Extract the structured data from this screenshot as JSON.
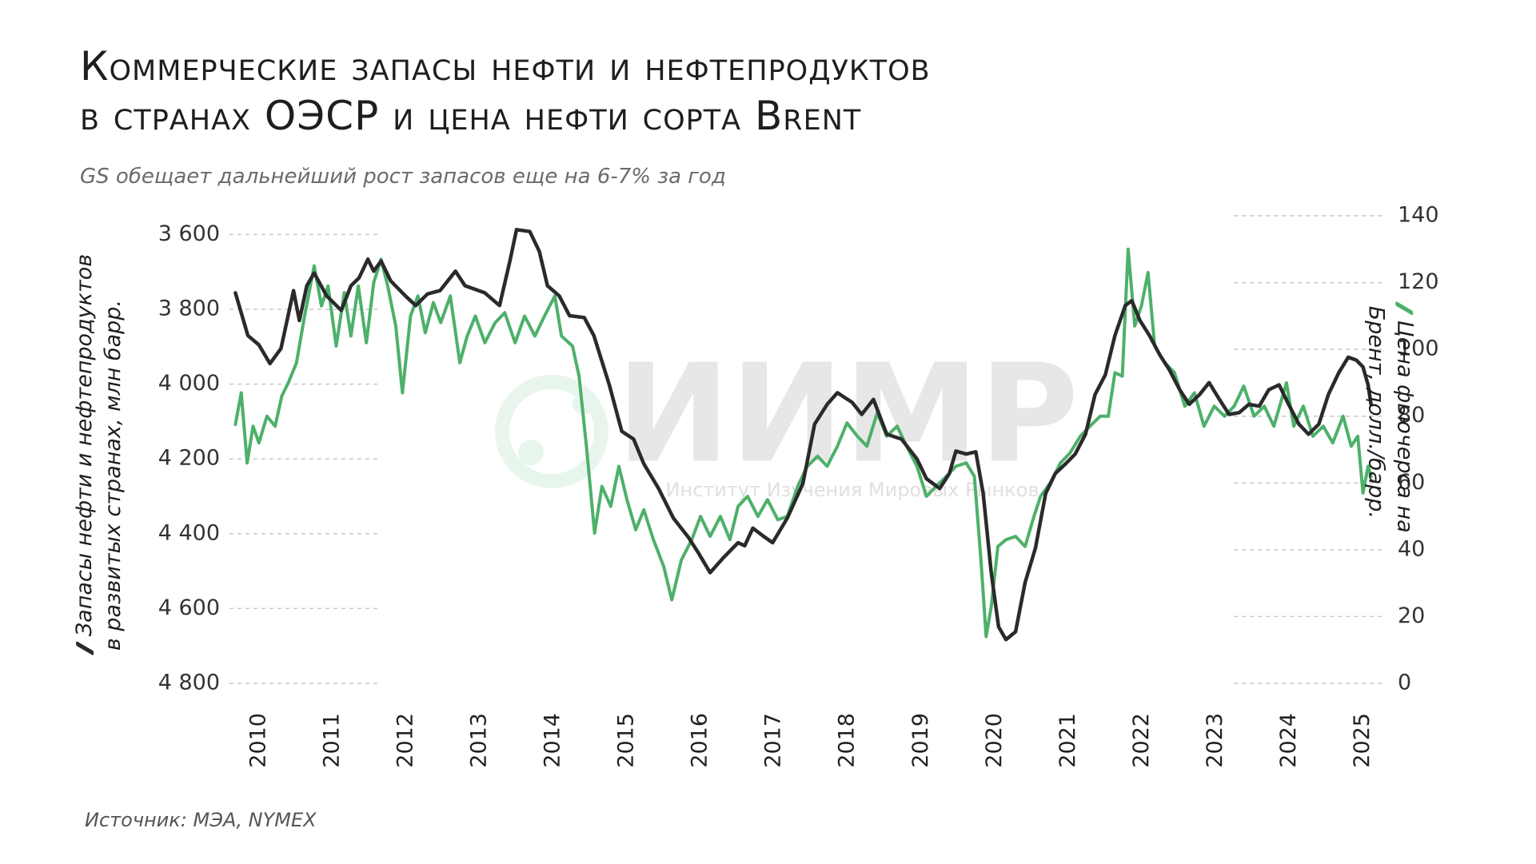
{
  "chart_data": {
    "type": "line",
    "title": "Коммерческие запасы нефти и нефтепродуктов\nв странах ОЭСР и цена нефти сорта Brent",
    "subtitle": "GS обещает дальнейший рост запасов еще на 6-7% за год",
    "source": "Источник: МЭА, NYMEX",
    "watermark": "ИИМР",
    "watermark_subtitle": "Институт Изучения Мировых Рынков",
    "xlim": [
      2009.6,
      2025.2
    ],
    "xticks": [
      2010,
      2011,
      2012,
      2013,
      2014,
      2015,
      2016,
      2017,
      2018,
      2019,
      2020,
      2021,
      2022,
      2023,
      2024,
      2025
    ],
    "ylim": [
      4800,
      3550
    ],
    "yticks": [
      {
        "value": 3600,
        "label": "3 600"
      },
      {
        "value": 3800,
        "label": "3 800"
      },
      {
        "value": 4000,
        "label": "4 000"
      },
      {
        "value": 4200,
        "label": "4 200"
      },
      {
        "value": 4400,
        "label": "4 400"
      },
      {
        "value": 4600,
        "label": "4 600"
      },
      {
        "value": 4800,
        "label": "4 800"
      }
    ],
    "y2lim": [
      0,
      140
    ],
    "y2ticks": [
      0,
      20,
      40,
      60,
      80,
      100,
      120,
      140
    ],
    "grid": true,
    "series": [
      {
        "name": "Запасы нефти и нефтепродуктов\nв развитых странах, млн барр.",
        "color": "#2a2a2a",
        "axis": "y",
        "x": [
          2009.68,
          2009.85,
          2010.0,
          2010.15,
          2010.3,
          2010.47,
          2010.55,
          2010.65,
          2010.75,
          2010.92,
          2011.12,
          2011.25,
          2011.36,
          2011.48,
          2011.56,
          2011.66,
          2011.79,
          2011.99,
          2012.13,
          2012.29,
          2012.46,
          2012.67,
          2012.8,
          2013.07,
          2013.27,
          2013.41,
          2013.5,
          2013.68,
          2013.81,
          2013.92,
          2014.08,
          2014.22,
          2014.42,
          2014.55,
          2014.76,
          2014.93,
          2015.09,
          2015.23,
          2015.43,
          2015.63,
          2015.84,
          2015.97,
          2016.13,
          2016.31,
          2016.51,
          2016.6,
          2016.71,
          2016.85,
          2016.98,
          2017.18,
          2017.39,
          2017.55,
          2017.72,
          2017.86,
          2018.06,
          2018.19,
          2018.35,
          2018.53,
          2018.73,
          2018.94,
          2019.07,
          2019.25,
          2019.38,
          2019.47,
          2019.61,
          2019.74,
          2019.84,
          2019.95,
          2020.05,
          2020.15,
          2020.28,
          2020.41,
          2020.55,
          2020.69,
          2020.82,
          2020.96,
          2021.09,
          2021.23,
          2021.36,
          2021.5,
          2021.63,
          2021.77,
          2021.86,
          2021.97,
          2022.1,
          2022.24,
          2022.37,
          2022.51,
          2022.64,
          2022.78,
          2022.91,
          2023.05,
          2023.18,
          2023.32,
          2023.45,
          2023.59,
          2023.72,
          2023.86,
          2023.99,
          2024.13,
          2024.26,
          2024.4,
          2024.53,
          2024.67,
          2024.8,
          2024.91,
          2025.0,
          2025.07,
          2025.11
        ],
        "values": [
          3756,
          3870,
          3895,
          3945,
          3905,
          3750,
          3830,
          3737,
          3703,
          3764,
          3803,
          3737,
          3716,
          3666,
          3698,
          3671,
          3724,
          3764,
          3790,
          3759,
          3750,
          3698,
          3737,
          3756,
          3790,
          3671,
          3587,
          3592,
          3645,
          3737,
          3764,
          3817,
          3822,
          3870,
          4002,
          4126,
          4147,
          4213,
          4279,
          4358,
          4411,
          4451,
          4504,
          4464,
          4424,
          4432,
          4385,
          4406,
          4424,
          4358,
          4266,
          4107,
          4054,
          4023,
          4049,
          4081,
          4041,
          4134,
          4147,
          4200,
          4253,
          4279,
          4239,
          4179,
          4187,
          4181,
          4292,
          4504,
          4649,
          4683,
          4662,
          4530,
          4438,
          4292,
          4239,
          4213,
          4187,
          4134,
          4028,
          3975,
          3870,
          3790,
          3777,
          3830,
          3870,
          3922,
          3962,
          4015,
          4054,
          4028,
          3996,
          4041,
          4081,
          4076,
          4054,
          4059,
          4015,
          4002,
          4054,
          4107,
          4134,
          4107,
          4028,
          3970,
          3928,
          3936,
          3954,
          4002,
          4054
        ]
      },
      {
        "name": "Цена фьючерса на Брент, долл./барр.",
        "color": "#4db06a",
        "axis": "y2",
        "x": [
          2009.68,
          2009.76,
          2009.84,
          2009.92,
          2010.0,
          2010.11,
          2010.22,
          2010.31,
          2010.4,
          2010.51,
          2010.62,
          2010.75,
          2010.85,
          2010.94,
          2011.05,
          2011.16,
          2011.25,
          2011.35,
          2011.46,
          2011.56,
          2011.66,
          2011.75,
          2011.86,
          2011.95,
          2012.06,
          2012.16,
          2012.26,
          2012.37,
          2012.47,
          2012.6,
          2012.73,
          2012.83,
          2012.94,
          2013.07,
          2013.21,
          2013.34,
          2013.48,
          2013.61,
          2013.75,
          2013.88,
          2014.02,
          2014.11,
          2014.26,
          2014.35,
          2014.45,
          2014.56,
          2014.66,
          2014.78,
          2014.89,
          2015.0,
          2015.12,
          2015.23,
          2015.36,
          2015.5,
          2015.61,
          2015.74,
          2015.88,
          2016.0,
          2016.13,
          2016.27,
          2016.4,
          2016.51,
          2016.64,
          2016.78,
          2016.91,
          2017.05,
          2017.18,
          2017.32,
          2017.45,
          2017.59,
          2017.72,
          2017.86,
          2017.99,
          2018.13,
          2018.26,
          2018.4,
          2018.53,
          2018.67,
          2018.8,
          2018.94,
          2019.07,
          2019.2,
          2019.34,
          2019.47,
          2019.61,
          2019.72,
          2019.81,
          2019.88,
          2019.95,
          2020.04,
          2020.15,
          2020.28,
          2020.41,
          2020.53,
          2020.62,
          2020.75,
          2020.89,
          2021.02,
          2021.16,
          2021.29,
          2021.43,
          2021.54,
          2021.63,
          2021.73,
          2021.81,
          2021.9,
          2021.99,
          2022.08,
          2022.17,
          2022.31,
          2022.44,
          2022.58,
          2022.71,
          2022.84,
          2022.98,
          2023.12,
          2023.25,
          2023.38,
          2023.52,
          2023.66,
          2023.79,
          2023.96,
          2024.06,
          2024.19,
          2024.32,
          2024.46,
          2024.59,
          2024.73,
          2024.84,
          2024.93,
          2025.0,
          2025.07,
          2025.11
        ],
        "values": [
          77.5,
          87,
          66,
          77,
          72,
          80,
          77,
          86,
          90,
          96,
          110,
          125,
          113,
          119,
          101,
          117,
          104,
          119,
          102,
          120,
          127,
          119,
          107,
          87,
          110,
          116,
          105,
          114,
          108,
          116,
          96,
          104,
          110,
          102,
          108,
          111,
          102,
          110,
          104,
          110,
          116,
          104,
          101,
          92,
          71,
          45,
          59,
          53,
          65,
          55,
          46,
          52,
          43,
          35,
          25,
          37,
          43,
          50,
          44,
          50,
          43,
          53,
          56,
          50,
          55,
          49,
          50,
          59,
          65,
          68,
          65,
          71,
          78,
          74,
          71,
          81,
          74,
          77,
          71,
          65,
          56,
          59,
          62,
          65,
          66,
          62,
          37,
          14,
          23,
          41,
          43,
          44,
          41,
          50,
          56,
          60,
          66,
          69,
          74,
          77,
          80,
          80,
          93,
          92,
          130,
          107,
          113,
          123,
          101,
          96,
          93,
          83,
          87,
          77,
          83,
          80,
          83,
          89,
          80,
          83,
          77,
          90,
          77,
          83,
          74,
          77,
          72,
          80,
          71,
          74,
          57,
          65,
          62
        ]
      }
    ]
  }
}
